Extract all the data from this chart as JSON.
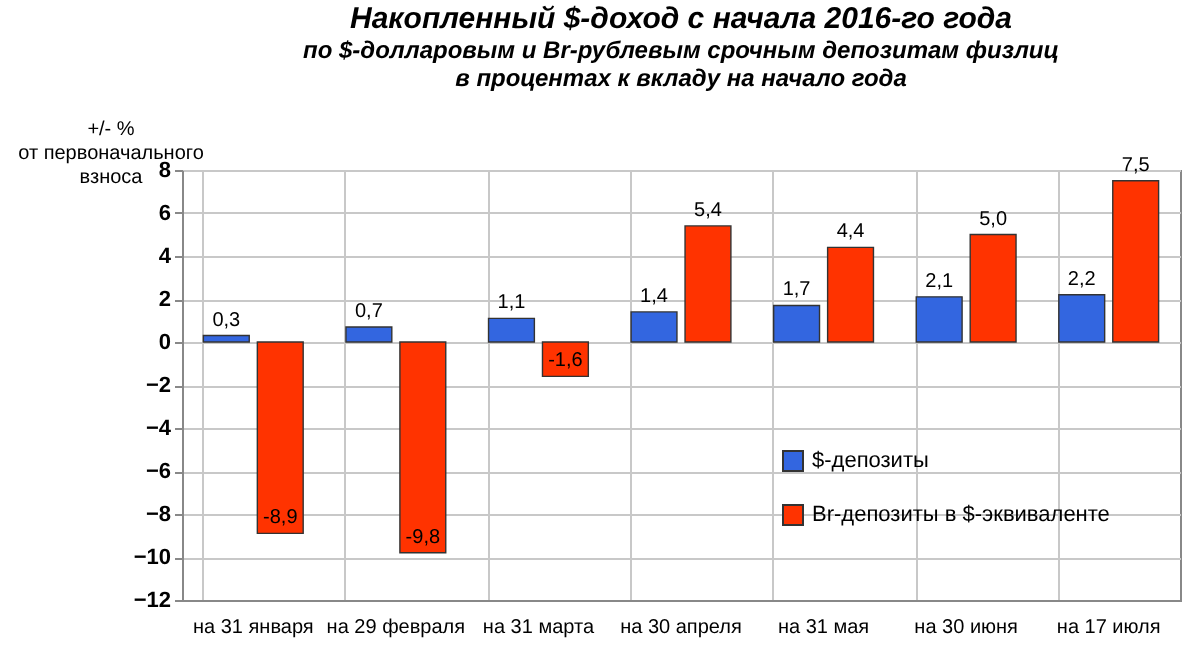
{
  "chart_data": {
    "type": "bar",
    "title": "Накопленный  $-доход с начала 2016-го года",
    "subtitle": "по $-долларовым и Br-рублевым срочным депозитам физлиц\nв процентах к вкладу на начало года",
    "ylabel": "+/- %\nот первоначального\nвзноса",
    "categories": [
      "на 31 января",
      "на 29 февраля",
      "на 31 марта",
      "на 30 апреля",
      "на 31 мая",
      "на 30 июня",
      "на 17 июля"
    ],
    "series": [
      {
        "name": "$-депозиты",
        "color": "#3366e0",
        "values": [
          0.3,
          0.7,
          1.1,
          1.4,
          1.7,
          2.1,
          2.2
        ],
        "value_labels": [
          "0,3",
          "0,7",
          "1,1",
          "1,4",
          "1,7",
          "2,1",
          "2,2"
        ]
      },
      {
        "name": "Br-депозиты в $-эквиваленте",
        "color": "#ff3300",
        "values": [
          -8.9,
          -9.8,
          -1.6,
          5.4,
          4.4,
          5.0,
          7.5
        ],
        "value_labels": [
          "-8,9",
          "-9,8",
          "-1,6",
          "5,4",
          "4,4",
          "5,0",
          "7,5"
        ]
      }
    ],
    "ylim": [
      -12,
      8
    ],
    "yticks": [
      -12,
      -10,
      -8,
      -6,
      -4,
      -2,
      0,
      2,
      4,
      6,
      8
    ],
    "grid": true,
    "legend": "right",
    "data_labels": true
  }
}
